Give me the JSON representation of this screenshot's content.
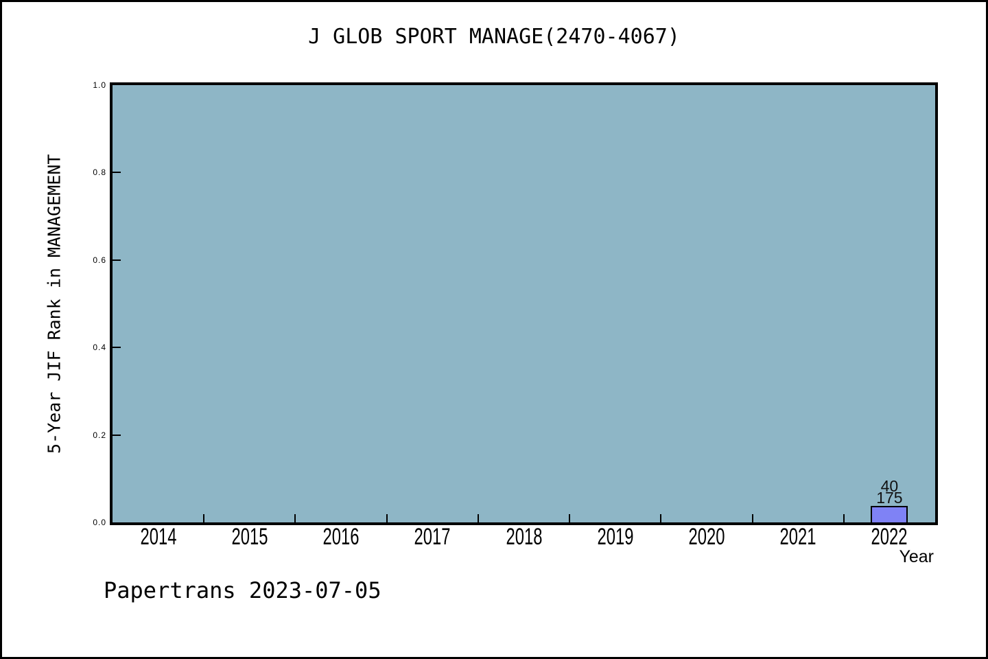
{
  "canvas": {
    "background": "#ffffff",
    "border_color": "#000000"
  },
  "chart_data": {
    "type": "bar",
    "title": "J GLOB SPORT MANAGE(2470-4067)",
    "xlabel": "Year",
    "ylabel": "5-Year JIF Rank in MANAGEMENT",
    "categories": [
      "2014",
      "2015",
      "2016",
      "2017",
      "2018",
      "2019",
      "2020",
      "2021",
      "2022"
    ],
    "y_tick_labels": [
      "1.0",
      "0.8",
      "0.6",
      "0.4",
      "0.2",
      "0.0"
    ],
    "ylim": [
      0.0,
      1.0
    ],
    "grid": false,
    "legend": false,
    "plot_background": "#8eb6c6",
    "bar_fill": "#7f82f5",
    "bar_edge": "#000000",
    "bars": [
      {
        "category": "2022",
        "rank": 40,
        "total": 175,
        "label_top": "40",
        "label_bottom": "175",
        "height_fraction": 0.038
      }
    ]
  },
  "footer": {
    "text": "Papertrans 2023-07-05"
  }
}
